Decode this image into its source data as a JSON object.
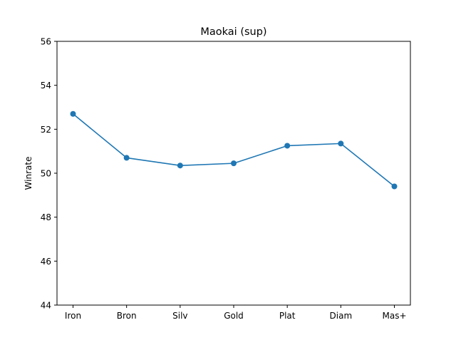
{
  "chart_data": {
    "type": "line",
    "title": "Maokai (sup)",
    "xlabel": "",
    "ylabel": "Winrate",
    "categories": [
      "Iron",
      "Bron",
      "Silv",
      "Gold",
      "Plat",
      "Diam",
      "Mas+"
    ],
    "series": [
      {
        "values": [
          52.7,
          50.7,
          50.35,
          50.45,
          51.25,
          51.35,
          49.4
        ],
        "color": "#1f77b4",
        "marker": "circle"
      }
    ],
    "ylim": [
      44,
      56
    ],
    "yticks": [
      44,
      46,
      48,
      50,
      52,
      54,
      56
    ],
    "grid": false
  }
}
